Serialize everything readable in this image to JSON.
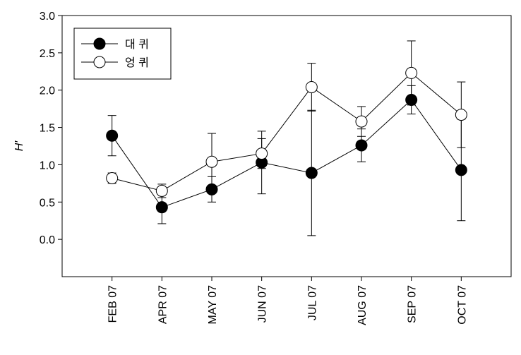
{
  "chart_data": {
    "type": "line",
    "ylabel": "H′",
    "categories": [
      "FEB 07",
      "APR 07",
      "MAY 07",
      "JUN 07",
      "JUL 07",
      "AUG 07",
      "SEP 07",
      "OCT 07"
    ],
    "series": [
      {
        "name": "대 퀴",
        "color": "#000000",
        "values": [
          1.39,
          0.43,
          0.67,
          1.03,
          0.89,
          1.26,
          1.87,
          0.93
        ],
        "errors": [
          0.27,
          0.22,
          0.17,
          0.42,
          0.84,
          0.22,
          0.19,
          0.68
        ]
      },
      {
        "name": "엉 퀴",
        "color": "#ffffff",
        "values": [
          0.82,
          0.65,
          1.04,
          1.15,
          2.04,
          1.58,
          2.23,
          1.67
        ],
        "errors": [
          0.07,
          0.09,
          0.38,
          0.2,
          0.32,
          0.2,
          0.43,
          0.44
        ]
      }
    ],
    "ylim": [
      -0.5,
      3.0
    ],
    "yticks": [
      {
        "value": 0,
        "label": "0.0"
      },
      0.5,
      {
        "value": 1,
        "label": "1.0"
      },
      1.5,
      {
        "value": 2,
        "label": "2.0"
      },
      2.5,
      {
        "value": 3,
        "label": "3.0"
      }
    ],
    "legend": "upper left"
  }
}
